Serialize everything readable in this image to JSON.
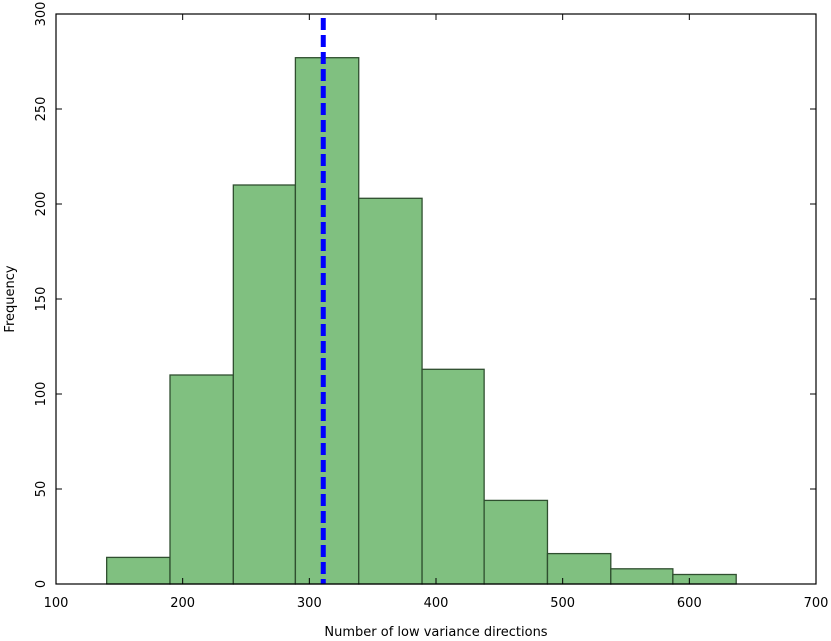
{
  "chart_data": {
    "type": "histogram",
    "title": "",
    "xlabel": "Number of low variance directions",
    "ylabel": "Frequency",
    "xlim": [
      100,
      700
    ],
    "ylim": [
      0,
      300
    ],
    "xticks": [
      100,
      200,
      300,
      400,
      500,
      600,
      700
    ],
    "yticks": [
      0,
      50,
      100,
      150,
      200,
      250,
      300
    ],
    "bins": [
      {
        "x0": 140,
        "x1": 190,
        "count": 14
      },
      {
        "x0": 190,
        "x1": 240,
        "count": 110
      },
      {
        "x0": 240,
        "x1": 289,
        "count": 210
      },
      {
        "x0": 289,
        "x1": 339,
        "count": 277
      },
      {
        "x0": 339,
        "x1": 389,
        "count": 203
      },
      {
        "x0": 389,
        "x1": 438,
        "count": 113
      },
      {
        "x0": 438,
        "x1": 488,
        "count": 44
      },
      {
        "x0": 488,
        "x1": 538,
        "count": 16
      },
      {
        "x0": 538,
        "x1": 587,
        "count": 8
      },
      {
        "x0": 587,
        "x1": 637,
        "count": 5
      }
    ],
    "reference_line": {
      "x": 311,
      "style": "dashed"
    },
    "colors": {
      "bar_fill": "#80c080",
      "bar_edge": "#2f4f2f",
      "line": "#0000ff"
    },
    "grid": false
  }
}
